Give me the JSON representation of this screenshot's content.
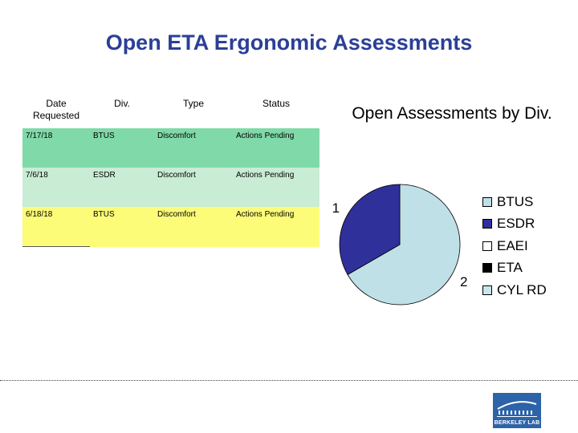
{
  "title": "Open ETA Ergonomic Assessments",
  "table": {
    "headers": [
      "Date Requested",
      "Div.",
      "Type",
      "Status"
    ],
    "rows": [
      {
        "date": "7/17/18",
        "div": "BTUS",
        "type": "Discomfort",
        "status": "Actions Pending"
      },
      {
        "date": "7/6/18",
        "div": "ESDR",
        "type": "Discomfort",
        "status": "Actions Pending"
      },
      {
        "date": "6/18/18",
        "div": "BTUS",
        "type": "Discomfort",
        "status": "Actions Pending"
      }
    ],
    "row_colors": [
      "#80d9a8",
      "#c9ecd4",
      "#fcfc78"
    ]
  },
  "chart_data": {
    "type": "pie",
    "title": "Open Assessments by Div.",
    "categories": [
      "BTUS",
      "ESDR",
      "EAEI",
      "ETA",
      "CYL RD"
    ],
    "values": [
      2,
      1,
      0,
      0,
      0
    ],
    "data_labels": [
      "2",
      "1",
      "",
      "",
      ""
    ],
    "colors": [
      "#bfe0e6",
      "#30309a",
      "#ffffff",
      "#000000",
      "#c8e6ee"
    ],
    "legend_position": "right"
  },
  "logo": {
    "text": "BERKELEY LAB",
    "color": "#2d63a8"
  }
}
